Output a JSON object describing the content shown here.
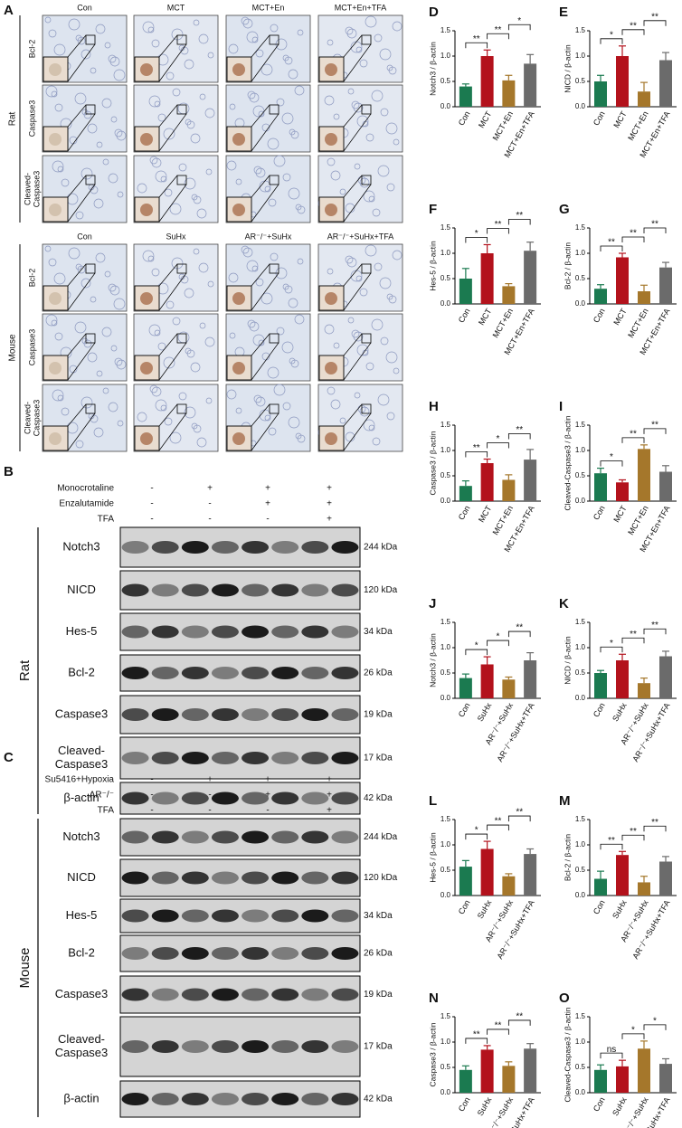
{
  "panel_a": {
    "label": "A",
    "blocks": [
      {
        "species": "Rat",
        "groups": [
          "Con",
          "MCT",
          "MCT+En",
          "MCT+En+TFA"
        ],
        "rows": [
          [
            "Bcl-2"
          ],
          [
            "Caspase3"
          ],
          [
            "Cleaved-",
            "Caspase3"
          ]
        ]
      },
      {
        "species": "Mouse",
        "groups": [
          "Con",
          "SuHx",
          "AR⁻/⁻+SuHx",
          "AR⁻/⁻+SuHx+TFA"
        ],
        "rows": [
          [
            "Bcl-2"
          ],
          [
            "Caspase3"
          ],
          [
            "Cleaved-",
            "Caspase3"
          ]
        ]
      }
    ]
  },
  "blots": [
    {
      "label": "B",
      "species": "Rat",
      "treatments": [
        {
          "name": "Monocrotaline",
          "signs": [
            "-",
            "+",
            "+",
            "+"
          ]
        },
        {
          "name": "Enzalutamide",
          "signs": [
            "-",
            "-",
            "+",
            "+"
          ]
        },
        {
          "name": "TFA",
          "signs": [
            "-",
            "-",
            "-",
            "+"
          ]
        }
      ],
      "proteins": [
        {
          "name": [
            "Notch3"
          ],
          "mw": "244 kDa"
        },
        {
          "name": [
            "NICD"
          ],
          "mw": "120 kDa"
        },
        {
          "name": [
            "Hes-5"
          ],
          "mw": "34 kDa"
        },
        {
          "name": [
            "Bcl-2"
          ],
          "mw": "26 kDa"
        },
        {
          "name": [
            "Caspase3"
          ],
          "mw": "19 kDa"
        },
        {
          "name": [
            "Cleaved-",
            "Caspase3"
          ],
          "mw": "17 kDa"
        },
        {
          "name": [
            "β-actin"
          ],
          "mw": "42 kDa"
        }
      ]
    },
    {
      "label": "C",
      "species": "Mouse",
      "treatments": [
        {
          "name": "Su5416+Hypoxia",
          "signs": [
            "-",
            "+",
            "+",
            "+"
          ]
        },
        {
          "name": "AR⁻/⁻",
          "signs": [
            "-",
            "-",
            "+",
            "+"
          ]
        },
        {
          "name": "TFA",
          "signs": [
            "-",
            "-",
            "-",
            "+"
          ]
        }
      ],
      "proteins": [
        {
          "name": [
            "Notch3"
          ],
          "mw": "244 kDa"
        },
        {
          "name": [
            "NICD"
          ],
          "mw": "120 kDa"
        },
        {
          "name": [
            "Hes-5"
          ],
          "mw": "34 kDa"
        },
        {
          "name": [
            "Bcl-2"
          ],
          "mw": "26 kDa"
        },
        {
          "name": [
            "Caspase3"
          ],
          "mw": "19 kDa"
        },
        {
          "name": [
            "Cleaved-",
            "Caspase3"
          ],
          "mw": "17 kDa"
        },
        {
          "name": [
            "β-actin"
          ],
          "mw": "42 kDa"
        }
      ]
    }
  ],
  "chart_data": [
    {
      "type": "bar",
      "panel": "D",
      "ylabel": "Notch3 / β-actin",
      "categories": [
        "Con",
        "MCT",
        "MCT+En",
        "MCT+En+TFA"
      ],
      "values": [
        0.4,
        1.0,
        0.52,
        0.85
      ],
      "errors": [
        0.05,
        0.12,
        0.1,
        0.18
      ],
      "colors": [
        "#1b7a50",
        "#b3121c",
        "#a5772b",
        "#6b6b6b"
      ],
      "ylim": [
        0,
        1.5
      ],
      "yticks": [
        {
          "value": 0,
          "label": "0.0"
        },
        0.5,
        {
          "value": 1,
          "label": "1.0"
        },
        1.5
      ],
      "annotations": [
        {
          "between": [
            "Con",
            "MCT"
          ],
          "text": "**"
        },
        {
          "between": [
            "MCT",
            "MCT+En"
          ],
          "text": "**"
        },
        {
          "between": [
            "MCT+En",
            "MCT+En+TFA"
          ],
          "text": "*"
        }
      ]
    },
    {
      "type": "bar",
      "panel": "E",
      "ylabel": "NICD / β-actin",
      "categories": [
        "Con",
        "MCT",
        "MCT+En",
        "MCT+En+TFA"
      ],
      "values": [
        0.5,
        1.0,
        0.3,
        0.92
      ],
      "errors": [
        0.12,
        0.2,
        0.18,
        0.15
      ],
      "colors": [
        "#1b7a50",
        "#b3121c",
        "#a5772b",
        "#6b6b6b"
      ],
      "ylim": [
        0,
        1.5
      ],
      "yticks": [
        {
          "value": 0,
          "label": "0.0"
        },
        0.5,
        {
          "value": 1,
          "label": "1.0"
        },
        1.5
      ],
      "annotations": [
        {
          "between": [
            "Con",
            "MCT"
          ],
          "text": "*"
        },
        {
          "between": [
            "MCT",
            "MCT+En"
          ],
          "text": "**"
        },
        {
          "between": [
            "MCT+En",
            "MCT+En+TFA"
          ],
          "text": "**"
        }
      ]
    },
    {
      "type": "bar",
      "panel": "F",
      "ylabel": "Hes-5 / β-actin",
      "categories": [
        "Con",
        "MCT",
        "MCT+En",
        "MCT+En+TFA"
      ],
      "values": [
        0.5,
        1.0,
        0.35,
        1.05
      ],
      "errors": [
        0.2,
        0.17,
        0.05,
        0.17
      ],
      "colors": [
        "#1b7a50",
        "#b3121c",
        "#a5772b",
        "#6b6b6b"
      ],
      "ylim": [
        0,
        1.5
      ],
      "yticks": [
        {
          "value": 0,
          "label": "0.0"
        },
        0.5,
        {
          "value": 1,
          "label": "1.0"
        },
        1.5
      ],
      "annotations": [
        {
          "between": [
            "Con",
            "MCT"
          ],
          "text": "*"
        },
        {
          "between": [
            "MCT",
            "MCT+En"
          ],
          "text": "**"
        },
        {
          "between": [
            "MCT+En",
            "MCT+En+TFA"
          ],
          "text": "**"
        }
      ]
    },
    {
      "type": "bar",
      "panel": "G",
      "ylabel": "Bcl-2 / β-actin",
      "categories": [
        "Con",
        "MCT",
        "MCT+En",
        "MCT+En+TFA"
      ],
      "values": [
        0.3,
        0.92,
        0.25,
        0.72
      ],
      "errors": [
        0.08,
        0.08,
        0.12,
        0.1
      ],
      "colors": [
        "#1b7a50",
        "#b3121c",
        "#a5772b",
        "#6b6b6b"
      ],
      "ylim": [
        0,
        1.5
      ],
      "yticks": [
        {
          "value": 0,
          "label": "0.0"
        },
        0.5,
        {
          "value": 1,
          "label": "1.0"
        },
        1.5
      ],
      "annotations": [
        {
          "between": [
            "Con",
            "MCT"
          ],
          "text": "**"
        },
        {
          "between": [
            "MCT",
            "MCT+En"
          ],
          "text": "**"
        },
        {
          "between": [
            "MCT+En",
            "MCT+En+TFA"
          ],
          "text": "**"
        }
      ]
    },
    {
      "type": "bar",
      "panel": "H",
      "ylabel": "Caspase3 / β-actin",
      "categories": [
        "Con",
        "MCT",
        "MCT+En",
        "MCT+En+TFA"
      ],
      "values": [
        0.3,
        0.75,
        0.42,
        0.82
      ],
      "errors": [
        0.1,
        0.08,
        0.1,
        0.2
      ],
      "colors": [
        "#1b7a50",
        "#b3121c",
        "#a5772b",
        "#6b6b6b"
      ],
      "ylim": [
        0,
        1.5
      ],
      "yticks": [
        {
          "value": 0,
          "label": "0.0"
        },
        0.5,
        {
          "value": 1,
          "label": "1.0"
        },
        1.5
      ],
      "annotations": [
        {
          "between": [
            "Con",
            "MCT"
          ],
          "text": "**"
        },
        {
          "between": [
            "MCT",
            "MCT+En"
          ],
          "text": "*"
        },
        {
          "between": [
            "MCT+En",
            "MCT+En+TFA"
          ],
          "text": "**"
        }
      ]
    },
    {
      "type": "bar",
      "panel": "I",
      "ylabel": "Cleaved-Caspase3 / β-actin",
      "categories": [
        "Con",
        "MCT",
        "MCT+En",
        "MCT+En+TFA"
      ],
      "values": [
        0.55,
        0.37,
        1.03,
        0.58
      ],
      "errors": [
        0.1,
        0.05,
        0.08,
        0.12
      ],
      "colors": [
        "#1b7a50",
        "#b3121c",
        "#a5772b",
        "#6b6b6b"
      ],
      "ylim": [
        0,
        1.5
      ],
      "yticks": [
        {
          "value": 0,
          "label": "0.0"
        },
        0.5,
        {
          "value": 1,
          "label": "1.0"
        },
        1.5
      ],
      "annotations": [
        {
          "between": [
            "Con",
            "MCT"
          ],
          "text": "*"
        },
        {
          "between": [
            "MCT",
            "MCT+En"
          ],
          "text": "**"
        },
        {
          "between": [
            "MCT+En",
            "MCT+En+TFA"
          ],
          "text": "**"
        }
      ]
    },
    {
      "type": "bar",
      "panel": "J",
      "ylabel": "Notch3 / β-actin",
      "categories": [
        "Con",
        "SuHx",
        "AR⁻/⁻+SuHx",
        "AR⁻/⁻+SuHx+TFA"
      ],
      "values": [
        0.4,
        0.67,
        0.37,
        0.75
      ],
      "errors": [
        0.08,
        0.15,
        0.05,
        0.15
      ],
      "colors": [
        "#1b7a50",
        "#b3121c",
        "#a5772b",
        "#6b6b6b"
      ],
      "ylim": [
        0,
        1.5
      ],
      "yticks": [
        {
          "value": 0,
          "label": "0.0"
        },
        0.5,
        {
          "value": 1,
          "label": "1.0"
        },
        1.5
      ],
      "annotations": [
        {
          "between": [
            "Con",
            "SuHx"
          ],
          "text": "*"
        },
        {
          "between": [
            "SuHx",
            "AR⁻/⁻+SuHx"
          ],
          "text": "*"
        },
        {
          "between": [
            "AR⁻/⁻+SuHx",
            "AR⁻/⁻+SuHx+TFA"
          ],
          "text": "**"
        }
      ]
    },
    {
      "type": "bar",
      "panel": "K",
      "ylabel": "NICD / β-actin",
      "categories": [
        "Con",
        "SuHx",
        "AR⁻/⁻+SuHx",
        "AR⁻/⁻+SuHx+TFA"
      ],
      "values": [
        0.5,
        0.75,
        0.3,
        0.83
      ],
      "errors": [
        0.05,
        0.12,
        0.1,
        0.1
      ],
      "colors": [
        "#1b7a50",
        "#b3121c",
        "#a5772b",
        "#6b6b6b"
      ],
      "ylim": [
        0,
        1.5
      ],
      "yticks": [
        {
          "value": 0,
          "label": "0.0"
        },
        0.5,
        {
          "value": 1,
          "label": "1.0"
        },
        1.5
      ],
      "annotations": [
        {
          "between": [
            "Con",
            "SuHx"
          ],
          "text": "*"
        },
        {
          "between": [
            "SuHx",
            "AR⁻/⁻+SuHx"
          ],
          "text": "**"
        },
        {
          "between": [
            "AR⁻/⁻+SuHx",
            "AR⁻/⁻+SuHx+TFA"
          ],
          "text": "**"
        }
      ]
    },
    {
      "type": "bar",
      "panel": "L",
      "ylabel": "Hes-5 / β-actin",
      "categories": [
        "Con",
        "SuHx",
        "AR⁻/⁻+SuHx",
        "AR⁻/⁻+SuHx+TFA"
      ],
      "values": [
        0.57,
        0.92,
        0.38,
        0.82
      ],
      "errors": [
        0.12,
        0.15,
        0.05,
        0.1
      ],
      "colors": [
        "#1b7a50",
        "#b3121c",
        "#a5772b",
        "#6b6b6b"
      ],
      "ylim": [
        0,
        1.5
      ],
      "yticks": [
        {
          "value": 0,
          "label": "0.0"
        },
        0.5,
        {
          "value": 1,
          "label": "1.0"
        },
        1.5
      ],
      "annotations": [
        {
          "between": [
            "Con",
            "SuHx"
          ],
          "text": "*"
        },
        {
          "between": [
            "SuHx",
            "AR⁻/⁻+SuHx"
          ],
          "text": "**"
        },
        {
          "between": [
            "AR⁻/⁻+SuHx",
            "AR⁻/⁻+SuHx+TFA"
          ],
          "text": "**"
        }
      ]
    },
    {
      "type": "bar",
      "panel": "M",
      "ylabel": "Bcl-2 / β-actin",
      "categories": [
        "Con",
        "SuHx",
        "AR⁻/⁻+SuHx",
        "AR⁻/⁻+SuHx+TFA"
      ],
      "values": [
        0.33,
        0.8,
        0.26,
        0.67
      ],
      "errors": [
        0.15,
        0.07,
        0.12,
        0.1
      ],
      "colors": [
        "#1b7a50",
        "#b3121c",
        "#a5772b",
        "#6b6b6b"
      ],
      "ylim": [
        0,
        1.5
      ],
      "yticks": [
        {
          "value": 0,
          "label": "0.0"
        },
        0.5,
        {
          "value": 1,
          "label": "1.0"
        },
        1.5
      ],
      "annotations": [
        {
          "between": [
            "Con",
            "SuHx"
          ],
          "text": "**"
        },
        {
          "between": [
            "SuHx",
            "AR⁻/⁻+SuHx"
          ],
          "text": "**"
        },
        {
          "between": [
            "AR⁻/⁻+SuHx",
            "AR⁻/⁻+SuHx+TFA"
          ],
          "text": "**"
        }
      ]
    },
    {
      "type": "bar",
      "panel": "N",
      "ylabel": "Caspase3 / β-actin",
      "categories": [
        "Con",
        "SuHx",
        "AR⁻/⁻+SuHx",
        "AR⁻/⁻+SuHx+TFA"
      ],
      "values": [
        0.45,
        0.85,
        0.53,
        0.87
      ],
      "errors": [
        0.08,
        0.08,
        0.08,
        0.1
      ],
      "colors": [
        "#1b7a50",
        "#b3121c",
        "#a5772b",
        "#6b6b6b"
      ],
      "ylim": [
        0,
        1.5
      ],
      "yticks": [
        {
          "value": 0,
          "label": "0.0"
        },
        0.5,
        {
          "value": 1,
          "label": "1.0"
        },
        1.5
      ],
      "annotations": [
        {
          "between": [
            "Con",
            "SuHx"
          ],
          "text": "**"
        },
        {
          "between": [
            "SuHx",
            "AR⁻/⁻+SuHx"
          ],
          "text": "**"
        },
        {
          "between": [
            "AR⁻/⁻+SuHx",
            "AR⁻/⁻+SuHx+TFA"
          ],
          "text": "**"
        }
      ]
    },
    {
      "type": "bar",
      "panel": "O",
      "ylabel": "Cleaved-Caspase3 / β-actin",
      "categories": [
        "Con",
        "SuHx",
        "AR⁻/⁻+SuHx",
        "AR⁻/⁻+SuHx+TFA"
      ],
      "values": [
        0.45,
        0.52,
        0.87,
        0.57
      ],
      "errors": [
        0.1,
        0.12,
        0.15,
        0.1
      ],
      "colors": [
        "#1b7a50",
        "#b3121c",
        "#a5772b",
        "#6b6b6b"
      ],
      "ylim": [
        0,
        1.5
      ],
      "yticks": [
        {
          "value": 0,
          "label": "0.0"
        },
        0.5,
        {
          "value": 1,
          "label": "1.0"
        },
        1.5
      ],
      "annotations": [
        {
          "between": [
            "Con",
            "SuHx"
          ],
          "text": "ns"
        },
        {
          "between": [
            "SuHx",
            "AR⁻/⁻+SuHx"
          ],
          "text": "*"
        },
        {
          "between": [
            "AR⁻/⁻+SuHx",
            "AR⁻/⁻+SuHx+TFA"
          ],
          "text": "*"
        }
      ]
    }
  ]
}
